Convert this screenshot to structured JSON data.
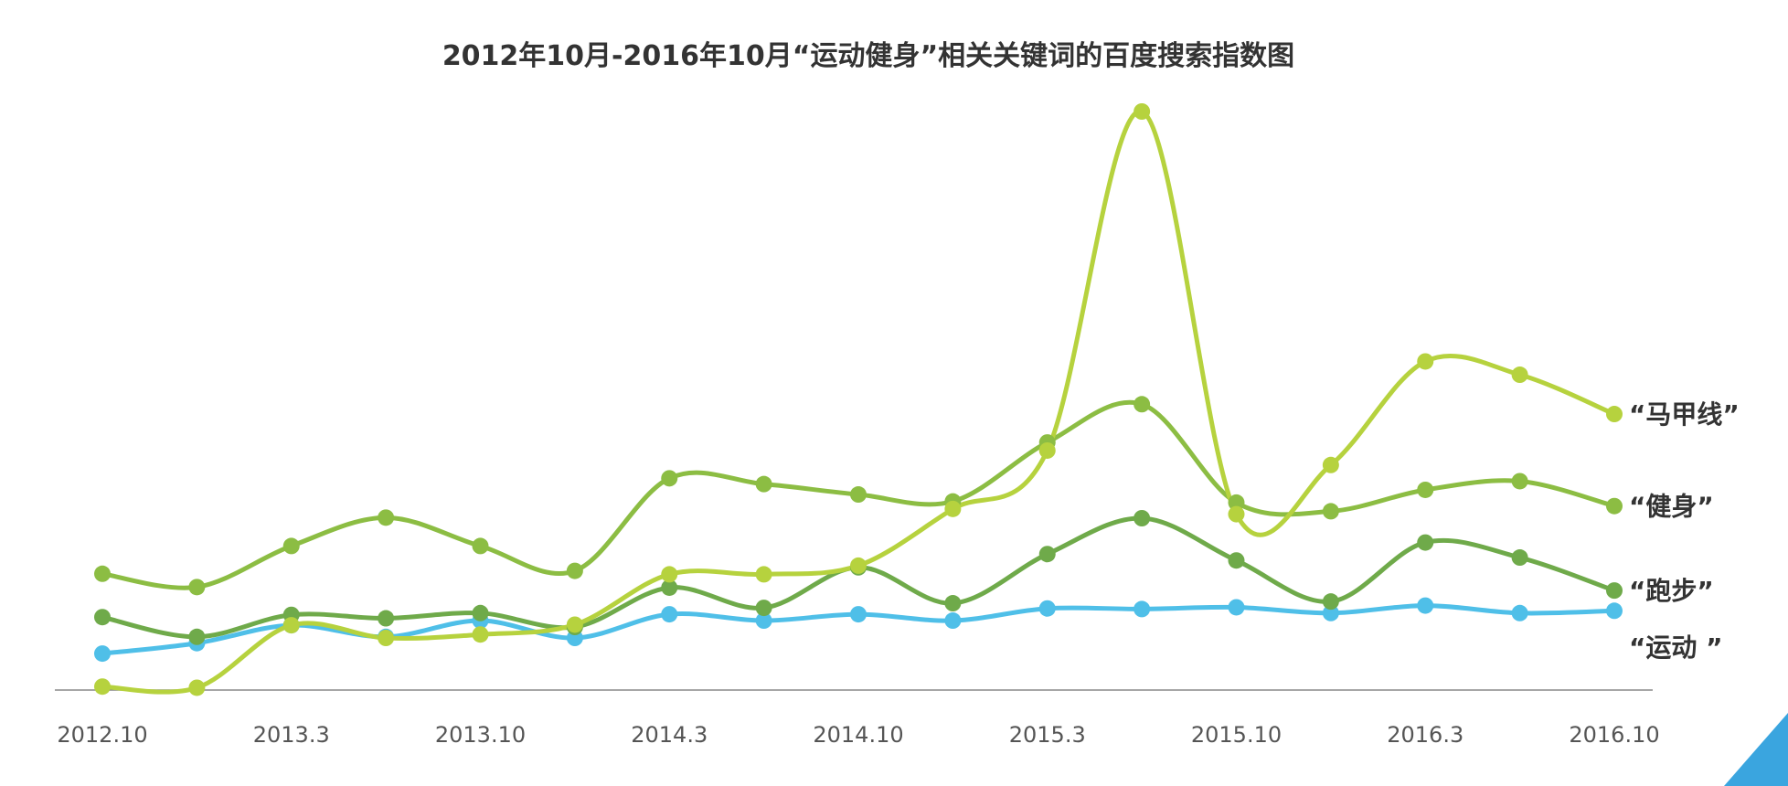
{
  "title": "2012年10月-2016年10月“运动健身”相关关键词的百度搜索指数图",
  "chart_data": {
    "type": "line",
    "title": "2012年10月-2016年10月“运动健身”相关关键词的百度搜索指数图",
    "xlabel": "",
    "ylabel": "",
    "ylim": [
      0,
      100
    ],
    "grid": false,
    "legend": "right-end-labels",
    "x_tick_labels": [
      "2012.10",
      "2013.3",
      "2013.10",
      "2014.3",
      "2014.10",
      "2015.3",
      "2015.10",
      "2016.3",
      "2016.10"
    ],
    "x": [
      0,
      1,
      2,
      3,
      4,
      5,
      6,
      7,
      8,
      9,
      10,
      11,
      12,
      13,
      14,
      15,
      16
    ],
    "series": [
      {
        "name": "“马甲线”",
        "color": "#b6d23e",
        "values": [
          0.6,
          0.4,
          11.2,
          9.0,
          9.6,
          11.3,
          20.0,
          20.0,
          21.5,
          31.3,
          41.4,
          100.0,
          30.4,
          38.9,
          56.8,
          54.5,
          47.7
        ]
      },
      {
        "name": "“健身”",
        "color": "#8cbd43",
        "values": [
          20.1,
          17.8,
          24.9,
          29.8,
          24.9,
          20.6,
          36.6,
          35.6,
          33.8,
          32.6,
          42.8,
          49.4,
          32.4,
          30.9,
          34.6,
          36.1,
          31.8
        ]
      },
      {
        "name": "“跑步”",
        "color": "#6faa4a",
        "values": [
          12.6,
          9.2,
          13.0,
          12.4,
          13.3,
          10.9,
          17.7,
          14.2,
          21.2,
          15.0,
          23.5,
          29.7,
          22.4,
          15.3,
          25.5,
          22.9,
          17.2
        ]
      },
      {
        "name": "“运动 ”",
        "color": "#4fbfe8",
        "values": [
          6.3,
          8.1,
          11.2,
          9.2,
          12.0,
          9.0,
          13.1,
          12.0,
          13.1,
          12.0,
          14.1,
          14.0,
          14.3,
          13.3,
          14.6,
          13.3,
          13.7
        ]
      }
    ]
  },
  "decor": {
    "corner_color": "#3aa5df",
    "axis_color": "#888888"
  }
}
